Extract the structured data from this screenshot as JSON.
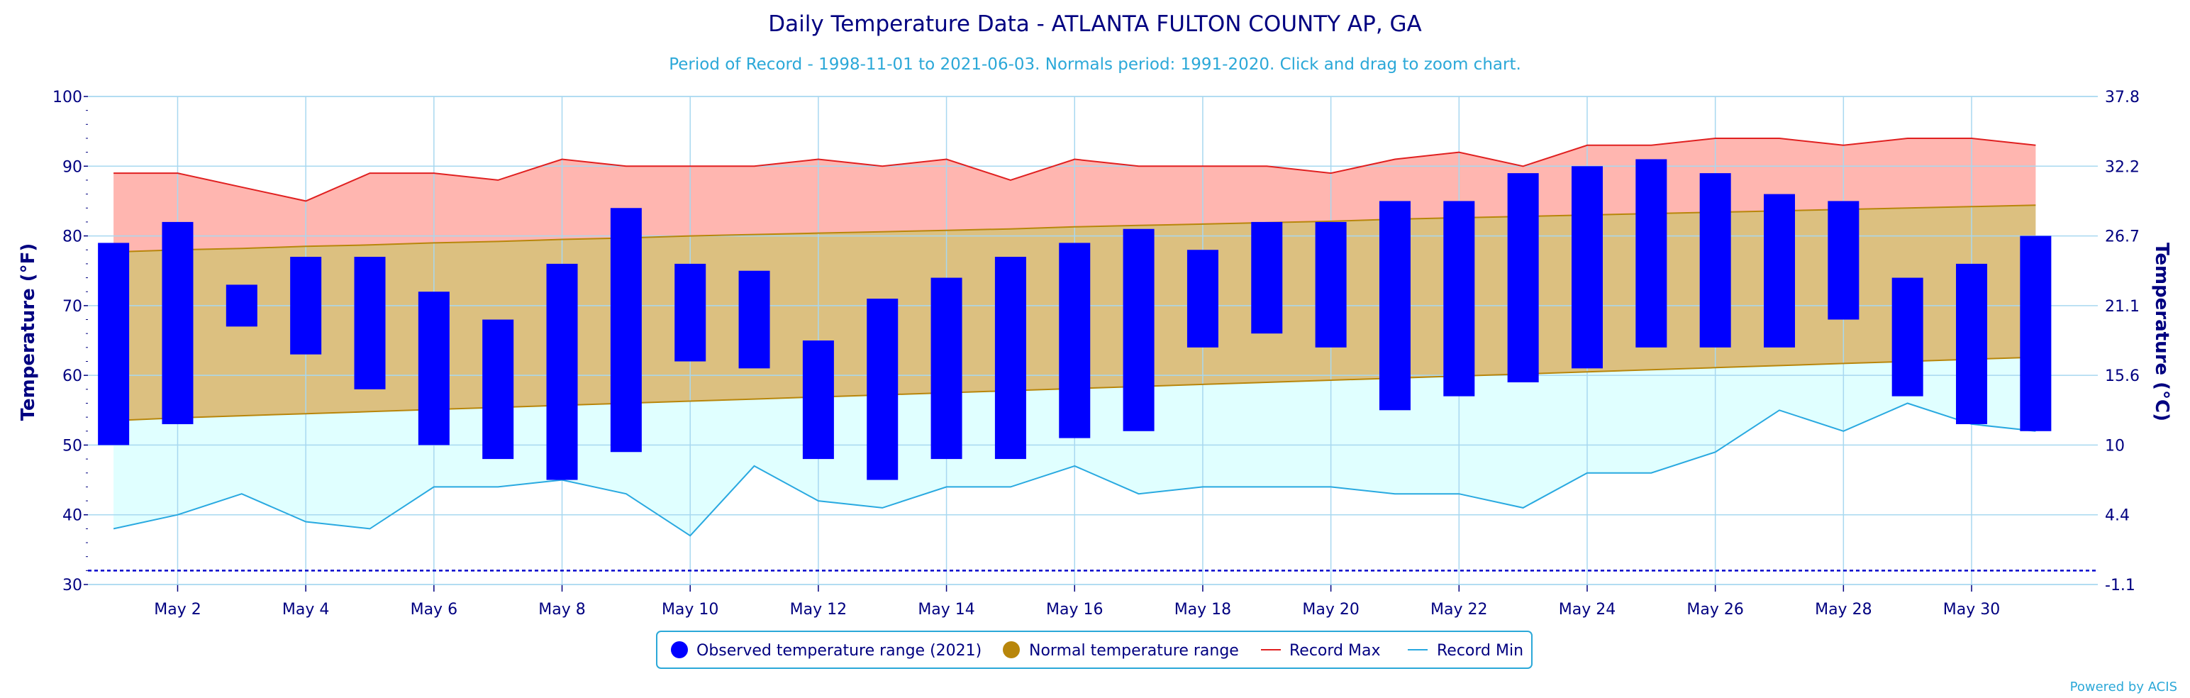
{
  "chart_data": {
    "type": "bar",
    "title": "Daily Temperature Data - ATLANTA FULTON COUNTY AP, GA",
    "subtitle": "Period of Record - 1998-11-01 to 2021-06-03. Normals period: 1991-2020. Click and drag to zoom chart.",
    "ylabel": "Temperature (°F)",
    "y2label": "Temperature (°C)",
    "ylim": [
      30,
      100
    ],
    "yticks": [
      30,
      40,
      50,
      60,
      70,
      80,
      90,
      100
    ],
    "y2ticks": [
      "-1.1",
      "4.4",
      "10",
      "15.6",
      "21.1",
      "26.7",
      "32.2",
      "37.8"
    ],
    "x": [
      1,
      2,
      3,
      4,
      5,
      6,
      7,
      8,
      9,
      10,
      11,
      12,
      13,
      14,
      15,
      16,
      17,
      18,
      19,
      20,
      21,
      22,
      23,
      24,
      25,
      26,
      27,
      28,
      29,
      30,
      31
    ],
    "xtick_days": [
      2,
      4,
      6,
      8,
      10,
      12,
      14,
      16,
      18,
      20,
      22,
      24,
      26,
      28,
      30
    ],
    "xtick_labels": [
      "May 2",
      "May 4",
      "May 6",
      "May 8",
      "May 10",
      "May 12",
      "May 14",
      "May 16",
      "May 18",
      "May 20",
      "May 22",
      "May 24",
      "May 26",
      "May 28",
      "May 30"
    ],
    "reference_line": 32,
    "series": [
      {
        "name": "Observed temperature range (2021)",
        "kind": "range-bar",
        "color": "#0000ff",
        "low": [
          50,
          53,
          67,
          63,
          58,
          50,
          48,
          45,
          49,
          62,
          61,
          48,
          45,
          48,
          48,
          51,
          52,
          64,
          66,
          64,
          55,
          57,
          59,
          61,
          64,
          64,
          64,
          68,
          57,
          53,
          52
        ],
        "high": [
          79,
          82,
          73,
          77,
          77,
          72,
          68,
          76,
          84,
          76,
          75,
          65,
          71,
          74,
          77,
          79,
          81,
          78,
          82,
          82,
          85,
          85,
          89,
          90,
          91,
          89,
          86,
          85,
          74,
          76,
          80
        ]
      },
      {
        "name": "Normal temperature range",
        "kind": "range-area",
        "color": "#b8860b",
        "low": [
          53.5,
          53.9,
          54.2,
          54.5,
          54.8,
          55.1,
          55.4,
          55.7,
          56.0,
          56.3,
          56.6,
          56.9,
          57.2,
          57.5,
          57.8,
          58.1,
          58.4,
          58.7,
          59.0,
          59.3,
          59.6,
          59.9,
          60.2,
          60.5,
          60.8,
          61.1,
          61.4,
          61.7,
          62.0,
          62.3,
          62.6
        ],
        "high": [
          77.7,
          78.0,
          78.2,
          78.5,
          78.7,
          79.0,
          79.2,
          79.5,
          79.7,
          80.0,
          80.2,
          80.4,
          80.6,
          80.8,
          81.0,
          81.3,
          81.5,
          81.7,
          81.9,
          82.1,
          82.4,
          82.6,
          82.8,
          83.0,
          83.2,
          83.4,
          83.6,
          83.8,
          84.0,
          84.2,
          84.4
        ]
      },
      {
        "name": "Record Max",
        "kind": "line",
        "color": "#e02020",
        "values": [
          89,
          89,
          87,
          85,
          89,
          89,
          88,
          91,
          90,
          90,
          90,
          91,
          90,
          91,
          88,
          91,
          90,
          90,
          90,
          89,
          91,
          92,
          90,
          93,
          93,
          94,
          94,
          93,
          94,
          94,
          93
        ]
      },
      {
        "name": "Record Min",
        "kind": "line",
        "color": "#29a9e0",
        "values": [
          38,
          40,
          43,
          39,
          38,
          44,
          44,
          45,
          43,
          37,
          47,
          42,
          41,
          44,
          44,
          47,
          43,
          44,
          44,
          44,
          43,
          43,
          41,
          46,
          46,
          49,
          55,
          52,
          56,
          53,
          52
        ]
      }
    ],
    "legend_position": "bottom-center",
    "grid": true
  },
  "credit": "Powered by ACIS",
  "colors": {
    "title": "#000080",
    "record_max_fill": "#ffb6b0",
    "normal_fill": "#dcc080",
    "record_min_fill": "#e0ffff",
    "grid": "#a8d8f0"
  }
}
